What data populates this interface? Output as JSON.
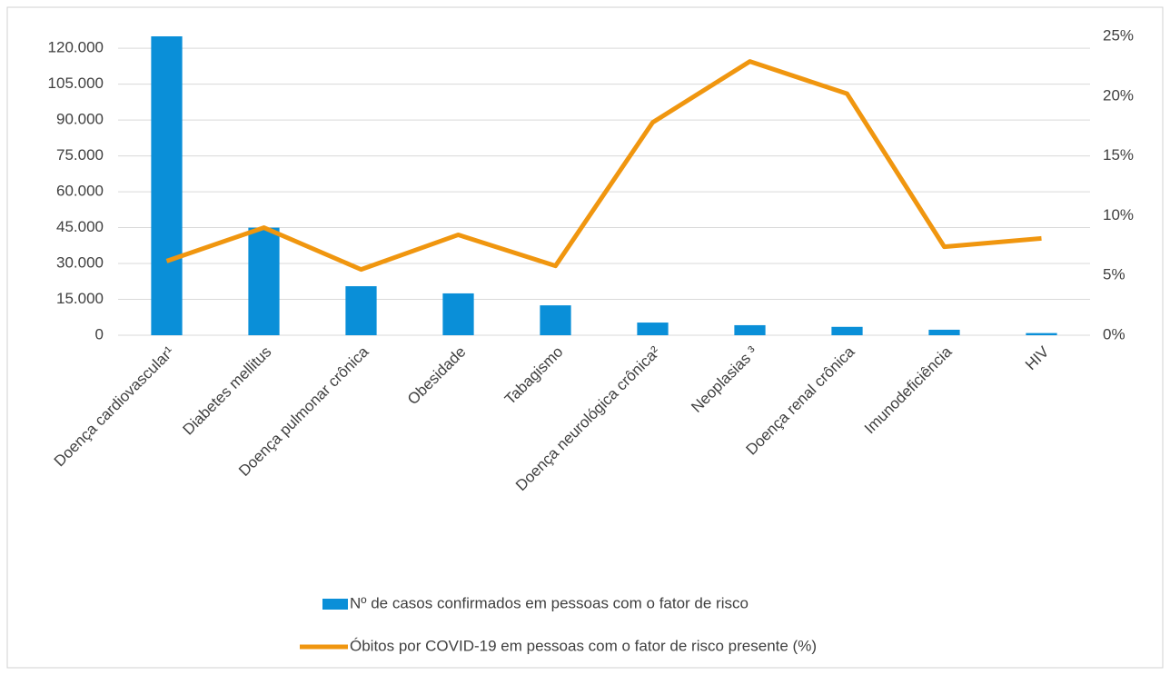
{
  "chart_data": {
    "type": "bar-line",
    "categories": [
      "Doença cardiovascular¹",
      "Diabetes mellitus",
      "Doença pulmonar crônica",
      "Obesidade",
      "Tabagismo",
      "Doença neurológica crônica²",
      "Neoplasias ³",
      "Doença renal crônica",
      "Imunodeficiência",
      "HIV"
    ],
    "series": [
      {
        "name": "Nº de casos confirmados em pessoas com o fator de risco",
        "color": "#0a8fd8",
        "type": "bar",
        "values": [
          125000,
          45000,
          20500,
          17500,
          12500,
          5300,
          4200,
          3500,
          2300,
          900
        ]
      },
      {
        "name": "Óbitos por COVID-19 em pessoas com o fator de risco presente (%)",
        "color": "#f0960f",
        "type": "line",
        "axis": "y2",
        "values": [
          6.2,
          9.0,
          5.5,
          8.4,
          5.8,
          17.8,
          22.9,
          20.2,
          7.4,
          8.1
        ]
      }
    ],
    "ylim": [
      0,
      125000
    ],
    "yticks": [
      {
        "value": 0,
        "label": "0"
      },
      {
        "value": 15000,
        "label": "15.000"
      },
      {
        "value": 30000,
        "label": "30.000"
      },
      {
        "value": 45000,
        "label": "45.000"
      },
      {
        "value": 60000,
        "label": "60.000"
      },
      {
        "value": 75000,
        "label": "75.000"
      },
      {
        "value": 90000,
        "label": "90.000"
      },
      {
        "value": 105000,
        "label": "105.000"
      },
      {
        "value": 120000,
        "label": "120.000"
      }
    ],
    "y2lim": [
      0,
      25
    ],
    "y2ticks": [
      {
        "value": 0,
        "label": "0%"
      },
      {
        "value": 5,
        "label": "5%"
      },
      {
        "value": 10,
        "label": "10%"
      },
      {
        "value": 15,
        "label": "15%"
      },
      {
        "value": 20,
        "label": "20%"
      },
      {
        "value": 25,
        "label": "25%"
      }
    ],
    "grid": true,
    "legend": "bottom"
  }
}
